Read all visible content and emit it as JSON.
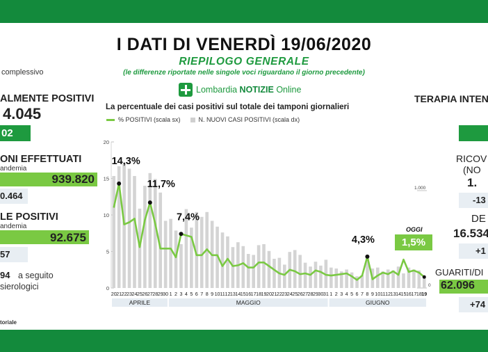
{
  "header": {
    "title": "I DATI DI VENERDÌ 19/06/2020",
    "subtitle": "RIEPILOGO GENERALE",
    "note": "(le differenze riportate nelle singole voci riguardano il giorno precedente)",
    "logo_text_pre": "Lombardia ",
    "logo_text_bold": "NOTIZIE",
    "logo_text_post": " Online"
  },
  "left": {
    "complessivo": "complessivo",
    "attualmente_label": "ALMENTE POSITIVI",
    "attualmente_value": "4.045",
    "attualmente_delta": "02",
    "tamponi_label": "ONI EFFETTUATI",
    "tamponi_sub": "andemia",
    "tamponi_value": "939.820",
    "tamponi_delta": "0.464",
    "positivi_label": "LE POSITIVI",
    "positivi_sub": "andemia",
    "positivi_value": "92.675",
    "positivi_delta": "57",
    "sierologici_num": "94",
    "sierologici_text1": "a seguito",
    "sierologici_text2": "sierologici",
    "footer": "toriale"
  },
  "right": {
    "terapia_label": "TERAPIA INTEN",
    "ricoverati_label": "RICOV",
    "ricoverati_sub": "(NO",
    "ricoverati_value": "1.",
    "ricoverati_delta": "-13",
    "deceduti_label": "DE",
    "deceduti_value": "16.534",
    "deceduti_delta": "+1",
    "guariti_label": "GUARITI/DI",
    "guariti_value": "62.096",
    "guariti_delta": "+74"
  },
  "chart_data": {
    "type": "line",
    "title": "La percentuale dei casi positivi sul totale dei tamponi giornalieri",
    "legend": [
      "% POSITIVI (scala sx)",
      "N. NUOVI CASI POSITIVI (scala dx)"
    ],
    "y_left": {
      "min": 0,
      "max": 20,
      "ticks": [
        0,
        5,
        10,
        15,
        20
      ]
    },
    "y_right": {
      "min": 0,
      "max": 1500,
      "ticks": [
        "0",
        "1.000"
      ]
    },
    "x": [
      20,
      21,
      22,
      23,
      24,
      25,
      26,
      27,
      28,
      29,
      30,
      1,
      2,
      3,
      4,
      5,
      6,
      7,
      8,
      9,
      10,
      11,
      12,
      13,
      14,
      15,
      16,
      17,
      18,
      19,
      20,
      21,
      22,
      23,
      24,
      25,
      26,
      27,
      28,
      29,
      30,
      31,
      1,
      2,
      3,
      4,
      5,
      6,
      7,
      8,
      9,
      10,
      11,
      12,
      13,
      14,
      15,
      16,
      17,
      18,
      19
    ],
    "x_labels": [
      "20",
      "21",
      "22",
      "23",
      "24",
      "25",
      "26",
      "27",
      "28",
      "29",
      "30",
      "1",
      "2",
      "3",
      "4",
      "5",
      "6",
      "7",
      "8",
      "9",
      "10",
      "11",
      "12",
      "13",
      "14",
      "15",
      "16",
      "17",
      "18",
      "19",
      "20",
      "21",
      "22",
      "23",
      "24",
      "25",
      "26",
      "27",
      "28",
      "29",
      "30",
      "31",
      "1",
      "2",
      "3",
      "4",
      "5",
      "6",
      "7",
      "8",
      "9",
      "10",
      "11",
      "12",
      "13",
      "14",
      "15",
      "16",
      "17",
      "18",
      "19"
    ],
    "months": [
      "APRILE",
      "MAGGIO",
      "GIUGNO"
    ],
    "series": [
      {
        "name": "% POSITIVI (scala sx)",
        "values": [
          11,
          14.3,
          8.7,
          9,
          9.5,
          5.6,
          9.3,
          11.7,
          8.8,
          5.4,
          5.4,
          5.4,
          4.2,
          7.4,
          7.2,
          7,
          4.5,
          4.5,
          5.3,
          4.5,
          4.5,
          3,
          4,
          3,
          3.1,
          3.4,
          2.8,
          2.8,
          3.5,
          3.5,
          3,
          2.5,
          2,
          1.8,
          2.5,
          2.3,
          1.9,
          2,
          1.8,
          2.4,
          2.2,
          1.8,
          1.7,
          1.8,
          1.9,
          2,
          1.6,
          1.1,
          1.7,
          4.3,
          1.2,
          1.7,
          2.1,
          1.9,
          2.3,
          1.8,
          3.9,
          2.2,
          2.4,
          2.1,
          1.5
        ]
      },
      {
        "name": "N. NUOVI CASI POSITIVI (scala dx)",
        "values": [
          1150,
          1250,
          1280,
          1225,
          1150,
          815,
          1050,
          1180,
          1120,
          980,
          690,
          710,
          590,
          450,
          810,
          620,
          780,
          730,
          780,
          690,
          630,
          570,
          530,
          420,
          470,
          430,
          350,
          340,
          440,
          450,
          380,
          300,
          310,
          240,
          370,
          390,
          340,
          260,
          220,
          270,
          230,
          290,
          210,
          200,
          170,
          190,
          160,
          120,
          130,
          310,
          200,
          210,
          170,
          190,
          180,
          220,
          150,
          210,
          190,
          180,
          130
        ]
      }
    ],
    "annotations": [
      {
        "label": "14,3%",
        "index": 1
      },
      {
        "label": "11,7%",
        "index": 7
      },
      {
        "label": "7,4%",
        "index": 13
      },
      {
        "label": "4,3%",
        "index": 49
      }
    ],
    "today": {
      "label": "OGGI",
      "value": "1,5%"
    },
    "colors": {
      "line": "#7ac943",
      "bars": "#d4d4d4",
      "brand": "#1e9a3f",
      "bar_dark": "#138a3c"
    }
  }
}
